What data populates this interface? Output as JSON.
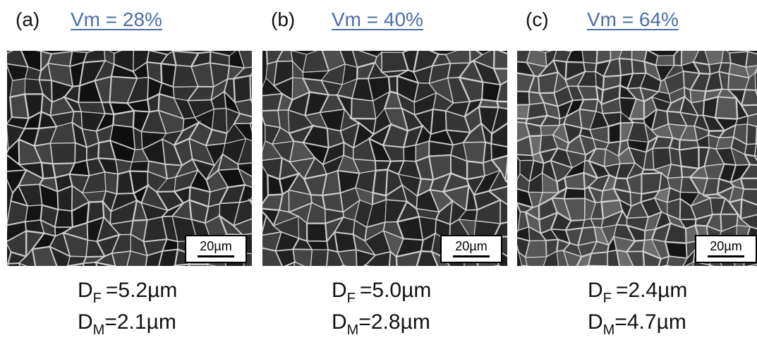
{
  "panels": [
    {
      "label": "(a)",
      "title": "Vm = 28%",
      "scale_bar": "20µm",
      "df": {
        "symbol": "D",
        "sub": "F",
        "text": "=5.2µm"
      },
      "dm": {
        "symbol": "D",
        "sub": "M",
        "text": "=2.1µm"
      }
    },
    {
      "label": "(b)",
      "title": "Vm = 40%",
      "scale_bar": "20µm",
      "df": {
        "symbol": "D",
        "sub": "F",
        "text": "=5.0µm"
      },
      "dm": {
        "symbol": "D",
        "sub": "M",
        "text": "=2.8µm"
      }
    },
    {
      "label": "(c)",
      "title": "Vm = 64%",
      "scale_bar": "20µm",
      "df": {
        "symbol": "D",
        "sub": "F",
        "text": "=2.4µm"
      },
      "dm": {
        "symbol": "D",
        "sub": "M",
        "text": "=4.7µm"
      }
    }
  ]
}
